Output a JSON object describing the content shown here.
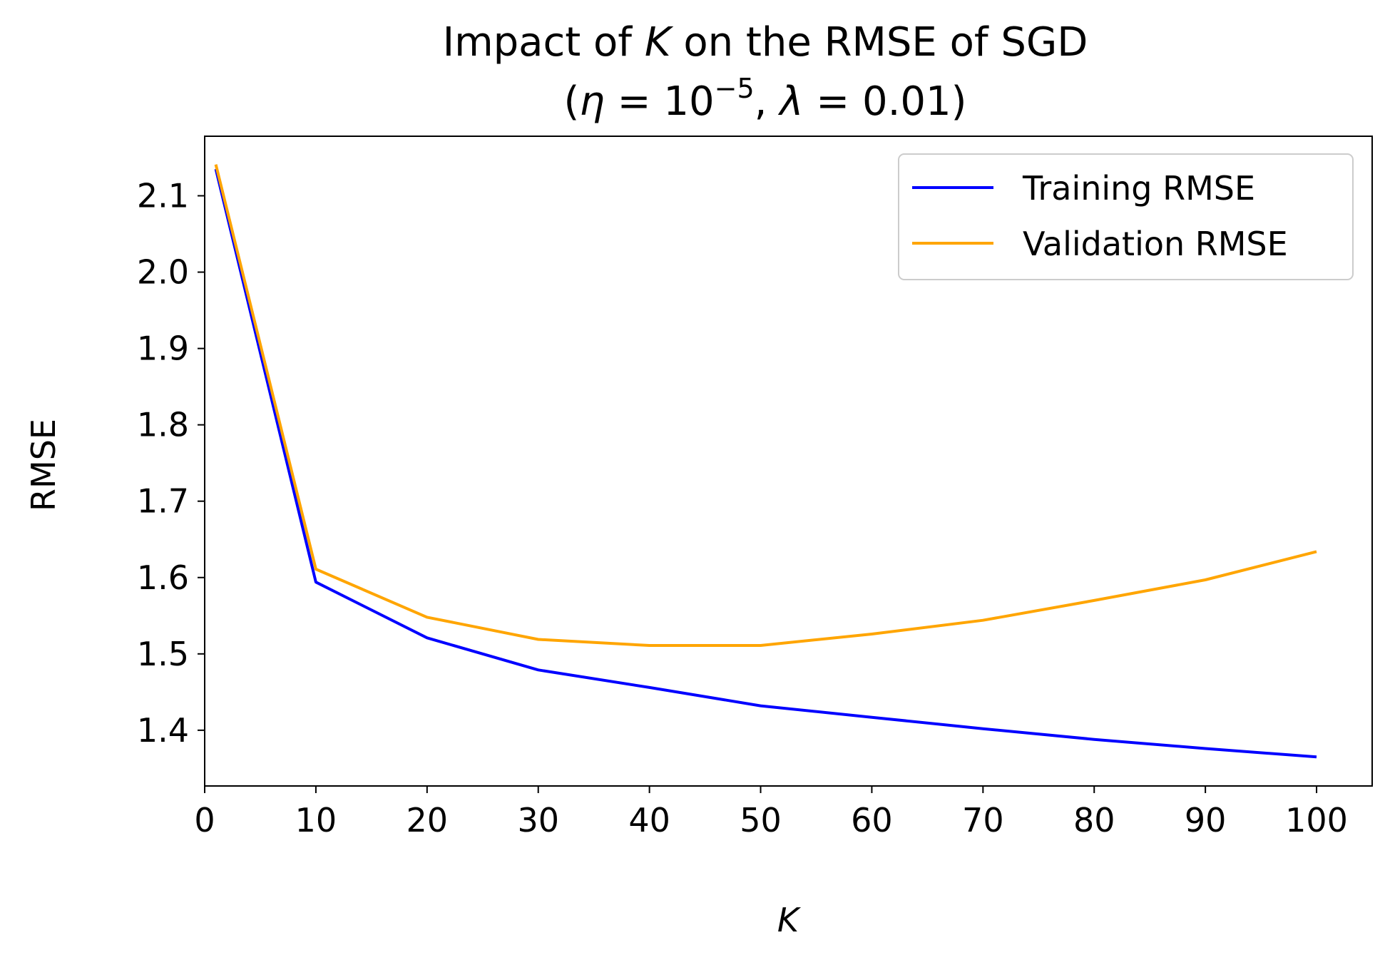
{
  "chart_data": {
    "type": "line",
    "title": "Impact of K on the RMSE of SGD",
    "title_parts": {
      "prefix": "Impact of ",
      "var": "K",
      "suffix": " on the RMSE of SGD"
    },
    "subtitle": "(η = 10⁻⁵, λ = 0.01)",
    "subtitle_parts": {
      "open": "(",
      "eta": "η",
      "eq1": " = 10",
      "exp": "−5",
      "sep": ", ",
      "lambda": "λ",
      "eq2": " = 0.01)"
    },
    "xlabel": "K",
    "ylabel": "RMSE",
    "xlim": [
      0,
      105
    ],
    "ylim": [
      1.327,
      2.178
    ],
    "xticks": [
      0,
      10,
      20,
      30,
      40,
      50,
      60,
      70,
      80,
      90,
      100
    ],
    "yticks": [
      1.4,
      1.5,
      1.6,
      1.7,
      1.8,
      1.9,
      2.0,
      2.1
    ],
    "grid": false,
    "legend_position": "top-right",
    "x": [
      1,
      10,
      20,
      30,
      40,
      50,
      60,
      70,
      80,
      90,
      100
    ],
    "series": [
      {
        "name": "Training RMSE",
        "color": "#0000ff",
        "values": [
          2.135,
          1.594,
          1.521,
          1.479,
          1.456,
          1.432,
          1.417,
          1.402,
          1.388,
          1.376,
          1.365
        ]
      },
      {
        "name": "Validation RMSE",
        "color": "#ffa500",
        "values": [
          2.141,
          1.611,
          1.548,
          1.519,
          1.511,
          1.511,
          1.526,
          1.544,
          1.57,
          1.597,
          1.634
        ]
      }
    ]
  }
}
